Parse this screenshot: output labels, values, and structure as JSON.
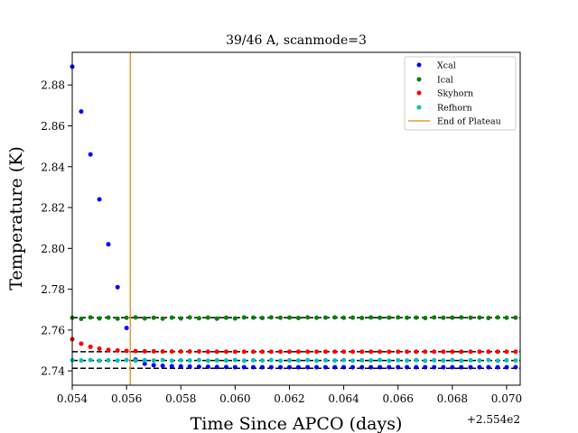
{
  "chart_data": {
    "type": "scatter",
    "title": "39/46 A, scanmode=3",
    "xlabel": "Time Since APCO (days)",
    "ylabel": "Temperature (K)",
    "x_offset_label": "+2.554e2",
    "xlim": [
      0.054,
      0.0705
    ],
    "ylim": [
      2.733,
      2.896
    ],
    "x_ticks": [
      0.054,
      0.056,
      0.058,
      0.06,
      0.062,
      0.064,
      0.066,
      0.068,
      0.07
    ],
    "x_tick_labels": [
      "0.054",
      "0.056",
      "0.058",
      "0.060",
      "0.062",
      "0.064",
      "0.066",
      "0.068",
      "0.070"
    ],
    "y_ticks": [
      2.74,
      2.76,
      2.78,
      2.8,
      2.82,
      2.84,
      2.86,
      2.88
    ],
    "y_tick_labels": [
      "2.74",
      "2.76",
      "2.78",
      "2.80",
      "2.82",
      "2.84",
      "2.86",
      "2.88"
    ],
    "legend_position": "top-right",
    "end_of_plateau": {
      "name": "End of Plateau",
      "x": 0.05614,
      "color": "#e69a3c"
    },
    "reference_lines": [
      2.7661,
      2.7494,
      2.7451,
      2.7413
    ],
    "series": [
      {
        "name": "Xcal",
        "color": "#0000ff",
        "x": [
          0.054,
          0.05433,
          0.05467,
          0.055,
          0.05533,
          0.05567,
          0.056,
          0.05633,
          0.05667,
          0.057,
          0.05733,
          0.05767,
          0.058,
          0.05833,
          0.05867,
          0.059,
          0.05933,
          0.05967,
          0.06,
          0.06033,
          0.06067,
          0.061,
          0.06133,
          0.06167,
          0.062,
          0.06233,
          0.06267,
          0.063,
          0.06333,
          0.06367,
          0.064,
          0.06433,
          0.06467,
          0.065,
          0.06533,
          0.06567,
          0.066,
          0.06633,
          0.06667,
          0.067,
          0.06733,
          0.06767,
          0.068,
          0.06833,
          0.06867,
          0.069,
          0.06933,
          0.06967,
          0.07,
          0.07033
        ],
        "y": [
          2.889,
          2.867,
          2.846,
          2.824,
          2.802,
          2.781,
          2.761,
          2.7455,
          2.7435,
          2.7428,
          2.7425,
          2.7423,
          2.7422,
          2.7421,
          2.742,
          2.742,
          2.7419,
          2.7419,
          2.7418,
          2.7418,
          2.7418,
          2.7418,
          2.7418,
          2.7418,
          2.7418,
          2.7418,
          2.7418,
          2.7418,
          2.7418,
          2.7418,
          2.7418,
          2.7418,
          2.7418,
          2.7418,
          2.7418,
          2.7418,
          2.7418,
          2.7418,
          2.7418,
          2.7418,
          2.7418,
          2.7418,
          2.7418,
          2.7418,
          2.7418,
          2.7418,
          2.7418,
          2.7418,
          2.7418,
          2.7418
        ]
      },
      {
        "name": "Ical",
        "color": "#008000",
        "x": [
          0.054,
          0.05433,
          0.05467,
          0.055,
          0.05533,
          0.05567,
          0.056,
          0.05633,
          0.05667,
          0.057,
          0.05733,
          0.05767,
          0.058,
          0.05833,
          0.05867,
          0.059,
          0.05933,
          0.05967,
          0.06,
          0.06033,
          0.06067,
          0.061,
          0.06133,
          0.06167,
          0.062,
          0.06233,
          0.06267,
          0.063,
          0.06333,
          0.06367,
          0.064,
          0.06433,
          0.06467,
          0.065,
          0.06533,
          0.06567,
          0.066,
          0.06633,
          0.06667,
          0.067,
          0.06733,
          0.06767,
          0.068,
          0.06833,
          0.06867,
          0.069,
          0.06933,
          0.06967,
          0.07,
          0.07033
        ],
        "y": [
          2.766,
          2.7655,
          2.7662,
          2.7657,
          2.7661,
          2.7656,
          2.766,
          2.7662,
          2.7657,
          2.766,
          2.7656,
          2.7661,
          2.7657,
          2.7662,
          2.7658,
          2.7661,
          2.7656,
          2.766,
          2.7657,
          2.7662,
          2.7661,
          2.7659,
          2.7662,
          2.766,
          2.7661,
          2.7659,
          2.7662,
          2.766,
          2.7661,
          2.7662,
          2.766,
          2.7661,
          2.7659,
          2.7662,
          2.766,
          2.7661,
          2.7662,
          2.766,
          2.7661,
          2.7659,
          2.7662,
          2.766,
          2.7661,
          2.7662,
          2.766,
          2.7661,
          2.7659,
          2.7662,
          2.766,
          2.7661
        ]
      },
      {
        "name": "Skyhorn",
        "color": "#ff0000",
        "x": [
          0.054,
          0.05433,
          0.05467,
          0.055,
          0.05533,
          0.05567,
          0.056,
          0.05633,
          0.05667,
          0.057,
          0.05733,
          0.05767,
          0.058,
          0.05833,
          0.05867,
          0.059,
          0.05933,
          0.05967,
          0.06,
          0.06033,
          0.06067,
          0.061,
          0.06133,
          0.06167,
          0.062,
          0.06233,
          0.06267,
          0.063,
          0.06333,
          0.06367,
          0.064,
          0.06433,
          0.06467,
          0.065,
          0.06533,
          0.06567,
          0.066,
          0.06633,
          0.06667,
          0.067,
          0.06733,
          0.06767,
          0.068,
          0.06833,
          0.06867,
          0.069,
          0.06933,
          0.06967,
          0.07,
          0.07033
        ],
        "y": [
          2.7555,
          2.7533,
          2.7518,
          2.7509,
          2.7503,
          2.75,
          2.7498,
          2.7497,
          2.7496,
          2.7496,
          2.7495,
          2.7495,
          2.7495,
          2.7495,
          2.7495,
          2.7494,
          2.7494,
          2.7494,
          2.7494,
          2.7494,
          2.7494,
          2.7494,
          2.7494,
          2.7494,
          2.7494,
          2.7494,
          2.7494,
          2.7494,
          2.7494,
          2.7494,
          2.7494,
          2.7494,
          2.7494,
          2.7494,
          2.7494,
          2.7494,
          2.7494,
          2.7494,
          2.7494,
          2.7494,
          2.7494,
          2.7494,
          2.7494,
          2.7494,
          2.7494,
          2.7494,
          2.7494,
          2.7494,
          2.7494,
          2.7494
        ]
      },
      {
        "name": "Refhorn",
        "color": "#00bfbf",
        "x": [
          0.054,
          0.05433,
          0.05467,
          0.055,
          0.05533,
          0.05567,
          0.056,
          0.05633,
          0.05667,
          0.057,
          0.05733,
          0.05767,
          0.058,
          0.05833,
          0.05867,
          0.059,
          0.05933,
          0.05967,
          0.06,
          0.06033,
          0.06067,
          0.061,
          0.06133,
          0.06167,
          0.062,
          0.06233,
          0.06267,
          0.063,
          0.06333,
          0.06367,
          0.064,
          0.06433,
          0.06467,
          0.065,
          0.06533,
          0.06567,
          0.066,
          0.06633,
          0.06667,
          0.067,
          0.06733,
          0.06767,
          0.068,
          0.06833,
          0.06867,
          0.069,
          0.06933,
          0.06967,
          0.07,
          0.07033
        ],
        "y": [
          2.7452,
          2.7451,
          2.7453,
          2.745,
          2.7452,
          2.7451,
          2.7453,
          2.745,
          2.7452,
          2.7451,
          2.7453,
          2.745,
          2.7452,
          2.7451,
          2.7453,
          2.745,
          2.7452,
          2.7451,
          2.7453,
          2.745,
          2.7452,
          2.7451,
          2.7453,
          2.745,
          2.7452,
          2.7451,
          2.7453,
          2.745,
          2.7452,
          2.7451,
          2.7453,
          2.745,
          2.7452,
          2.7451,
          2.7453,
          2.745,
          2.7452,
          2.7451,
          2.7453,
          2.745,
          2.7452,
          2.7451,
          2.7453,
          2.745,
          2.7452,
          2.7451,
          2.7453,
          2.745,
          2.7452,
          2.7451
        ]
      }
    ]
  }
}
